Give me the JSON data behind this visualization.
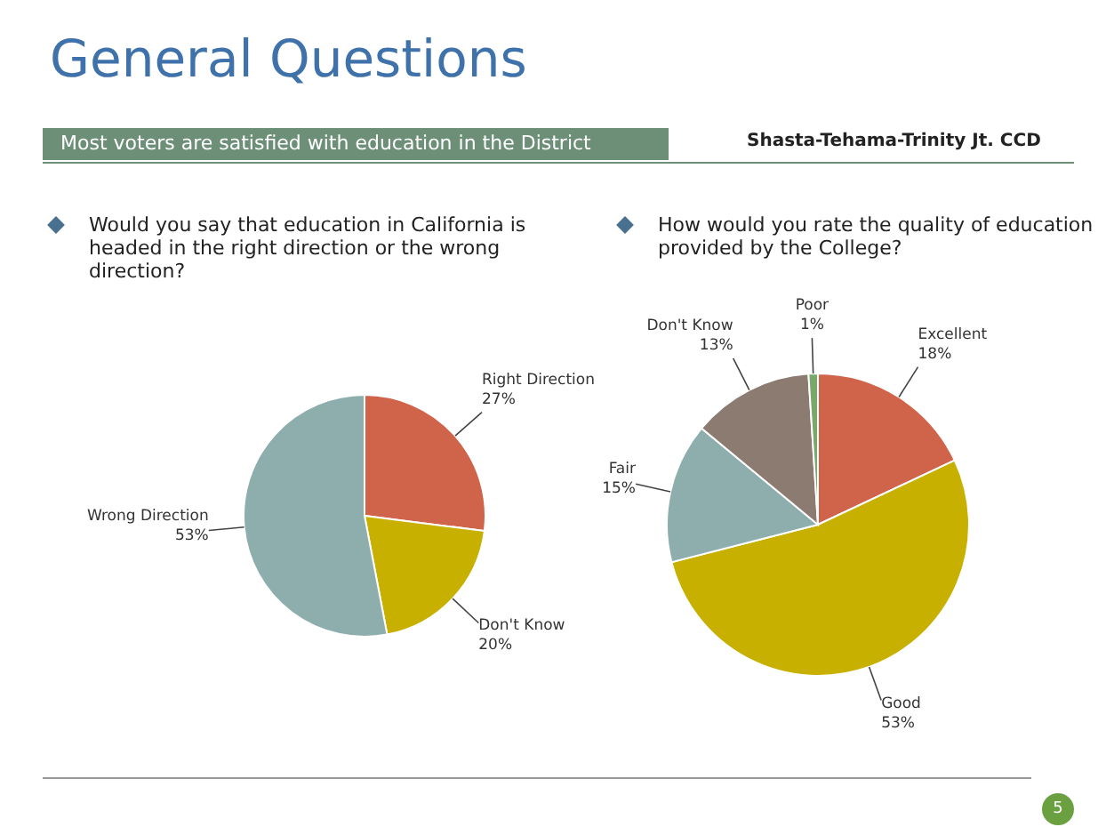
{
  "chart_data": [
    {
      "type": "pie",
      "title": "Would you say that education in California is headed in the right direction or the wrong direction?",
      "categories": [
        "Right Direction",
        "Don't Know",
        "Wrong Direction"
      ],
      "values": [
        27,
        20,
        53
      ],
      "value_labels": [
        "27%",
        "20%",
        "53%"
      ],
      "colors": [
        "#d0644a",
        "#c8b000",
        "#8eaeae"
      ],
      "legend": false,
      "annotations": [
        "General Questions",
        "Most voters are satisfied with education in the District",
        "Shasta-Tehama-Trinity Jt. CCD",
        "5"
      ]
    },
    {
      "type": "pie",
      "title": "How would you rate the quality of education provided by the College?",
      "categories": [
        "Excellent",
        "Good",
        "Fair",
        "Don't Know",
        "Poor"
      ],
      "values": [
        18,
        53,
        15,
        13,
        1
      ],
      "value_labels": [
        "18%",
        "53%",
        "15%",
        "13%",
        "1%"
      ],
      "colors": [
        "#d0644a",
        "#c8b000",
        "#8eaeae",
        "#8c7b70",
        "#7aa86a"
      ],
      "legend": false
    }
  ]
}
